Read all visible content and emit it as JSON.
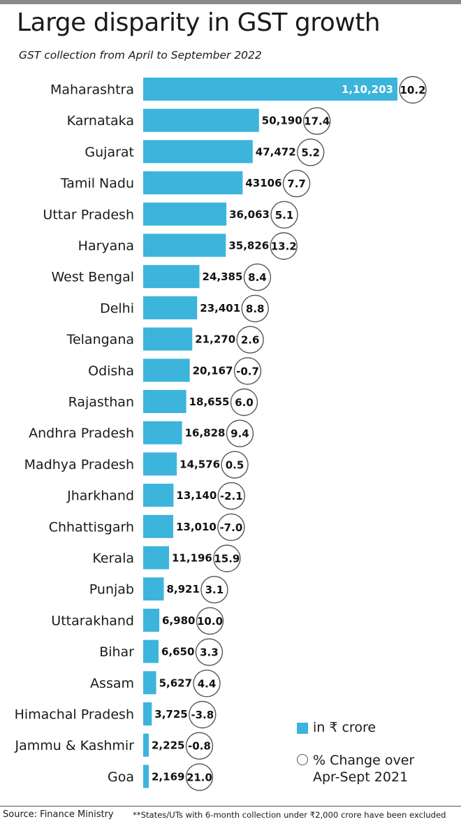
{
  "title": "Large disparity in GST growth",
  "subtitle": "GST collection from April to September 2022",
  "legend": {
    "bar_label": "in ₹ crore",
    "circle_label_line1": "% Change over",
    "circle_label_line2": "Apr-Sept 2021"
  },
  "source": "Source: Finance Ministry",
  "footnote": "**States/UTs with 6-month collection under ₹2,000 crore have been excluded",
  "colors": {
    "bar": "#3cb4dc",
    "circle_stroke": "#555555",
    "rule": "#8a8a8a"
  },
  "chart_data": {
    "type": "bar",
    "orientation": "horizontal",
    "title": "Large disparity in GST growth",
    "subtitle": "GST collection from April to September 2022",
    "categories": [
      "Maharashtra",
      "Karnataka",
      "Gujarat",
      "Tamil Nadu",
      "Uttar Pradesh",
      "Haryana",
      "West Bengal",
      "Delhi",
      "Telangana",
      "Odisha",
      "Rajasthan",
      "Andhra Pradesh",
      "Madhya Pradesh",
      "Jharkhand",
      "Chhattisgarh",
      "Kerala",
      "Punjab",
      "Uttarakhand",
      "Bihar",
      "Assam",
      "Himachal Pradesh",
      "Jammu & Kashmir",
      "Goa"
    ],
    "series": [
      {
        "name": "in ₹ crore",
        "values": [
          110203,
          50190,
          47472,
          43106,
          36063,
          35826,
          24385,
          23401,
          21270,
          20167,
          18655,
          16828,
          14576,
          13140,
          13010,
          11196,
          8921,
          6980,
          6650,
          5627,
          3725,
          2225,
          2169
        ],
        "labels": [
          "1,10,203",
          "50,190",
          "47,472",
          "43106",
          "36,063",
          "35,826",
          "24,385",
          "23,401",
          "21,270",
          "20,167",
          "18,655",
          "16,828",
          "14,576",
          "13,140",
          "13,010",
          "11,196",
          "8,921",
          "6,980",
          "6,650",
          "5,627",
          "3,725",
          "2,225",
          "2,169"
        ]
      },
      {
        "name": "% Change over Apr-Sept 2021",
        "values": [
          10.2,
          17.4,
          5.2,
          7.7,
          5.1,
          13.2,
          8.4,
          8.8,
          2.6,
          -0.7,
          6.0,
          9.4,
          0.5,
          -2.1,
          -7.0,
          15.9,
          3.1,
          10.0,
          3.3,
          4.4,
          -3.8,
          -0.8,
          21.0
        ],
        "labels": [
          "10.2",
          "17.4",
          "5.2",
          "7.7",
          "5.1",
          "13.2",
          "8.4",
          "8.8",
          "2.6",
          "-0.7",
          "6.0",
          "9.4",
          "0.5",
          "-2.1",
          "-7.0",
          "15.9",
          "3.1",
          "10.0",
          "3.3",
          "4.4",
          "-3.8",
          "-0.8",
          "21.0"
        ]
      }
    ],
    "grid": false,
    "legend_position": "bottom-right"
  }
}
